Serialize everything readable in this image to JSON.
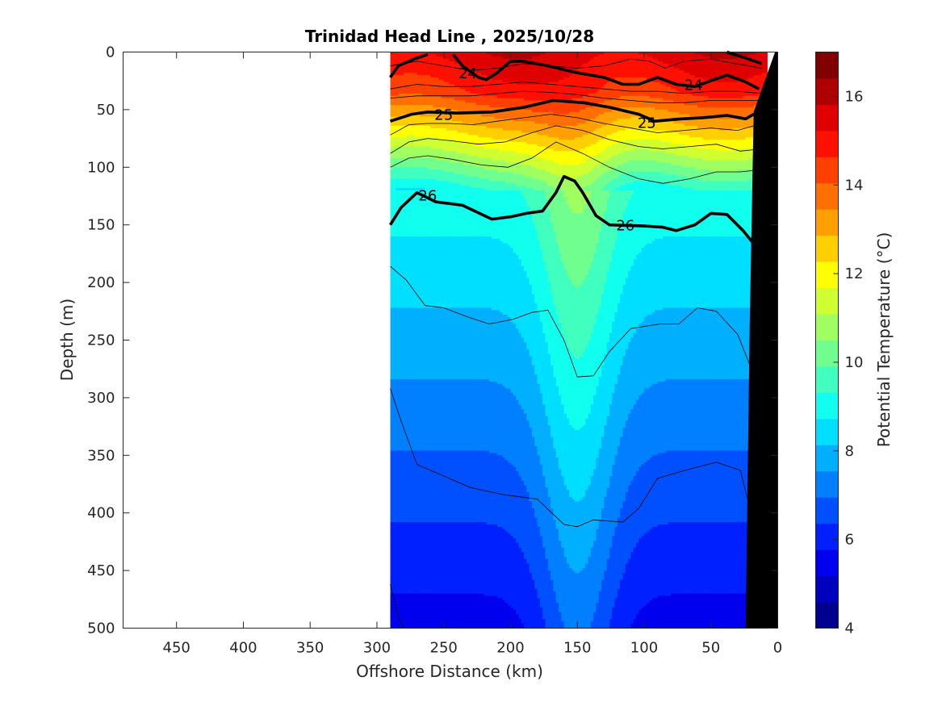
{
  "chart_data": {
    "type": "contour",
    "title": "Trinidad Head Line , 2025/10/28",
    "xlabel": "Offshore Distance (km)",
    "ylabel": "Depth (m)",
    "colorbar_label": "Potential Temperature (°C)",
    "x_direction": "reversed",
    "xlim": [
      490,
      0
    ],
    "ylim": [
      500,
      0
    ],
    "x_ticks": [
      "450",
      "400",
      "350",
      "300",
      "250",
      "200",
      "150",
      "100",
      "50",
      "0"
    ],
    "y_ticks": [
      "0",
      "50",
      "100",
      "150",
      "200",
      "250",
      "300",
      "350",
      "400",
      "450",
      "500"
    ],
    "colorbar_range": [
      4,
      17
    ],
    "colorbar_ticks": [
      "4",
      "6",
      "8",
      "10",
      "12",
      "14",
      "16"
    ],
    "colormap": [
      "#00008f",
      "#0000bf",
      "#0000ef",
      "#0020ff",
      "#0050ff",
      "#0080ff",
      "#00b0ff",
      "#00dfff",
      "#10ffef",
      "#40ffbf",
      "#70ff8f",
      "#a0ff60",
      "#cfff30",
      "#ffff00",
      "#ffcf00",
      "#ff9f00",
      "#ff7000",
      "#ff4000",
      "#ff1000",
      "#df0000",
      "#af0000",
      "#800000"
    ],
    "data_extent_km": [
      290,
      8
    ],
    "sigma_labels": [
      {
        "text": "24",
        "x": 232,
        "y": 18
      },
      {
        "text": "24",
        "x": 63,
        "y": 28
      },
      {
        "text": "25",
        "x": 250,
        "y": 54
      },
      {
        "text": "25",
        "x": 98,
        "y": 61
      },
      {
        "text": "26",
        "x": 262,
        "y": 124
      },
      {
        "text": "26",
        "x": 114,
        "y": 150
      }
    ],
    "sigma_contours": [
      {
        "label": "24",
        "points": [
          [
            290,
            22
          ],
          [
            284,
            12
          ],
          [
            272,
            6
          ],
          [
            262,
            2
          ]
        ]
      },
      {
        "label": "24",
        "points": [
          [
            243,
            2
          ],
          [
            236,
            12
          ],
          [
            224,
            22
          ],
          [
            218,
            24
          ],
          [
            210,
            18
          ],
          [
            200,
            8
          ],
          [
            190,
            8
          ],
          [
            172,
            12
          ],
          [
            150,
            18
          ],
          [
            130,
            22
          ],
          [
            116,
            28
          ],
          [
            104,
            28
          ],
          [
            90,
            22
          ],
          [
            76,
            28
          ],
          [
            62,
            30
          ],
          [
            48,
            24
          ],
          [
            38,
            20
          ],
          [
            24,
            26
          ],
          [
            14,
            32
          ]
        ]
      },
      {
        "label": "24",
        "points": [
          [
            38,
            0
          ],
          [
            22,
            6
          ],
          [
            12,
            10
          ]
        ]
      },
      {
        "label": "25",
        "points": [
          [
            290,
            60
          ],
          [
            274,
            54
          ],
          [
            262,
            52
          ],
          [
            240,
            53
          ],
          [
            214,
            52
          ],
          [
            190,
            48
          ],
          [
            168,
            42
          ],
          [
            145,
            44
          ],
          [
            126,
            48
          ],
          [
            104,
            54
          ],
          [
            92,
            60
          ],
          [
            72,
            58
          ],
          [
            56,
            57
          ],
          [
            38,
            55
          ],
          [
            24,
            58
          ],
          [
            12,
            50
          ]
        ]
      },
      {
        "label": "26",
        "points": [
          [
            290,
            150
          ],
          [
            282,
            135
          ],
          [
            270,
            122
          ],
          [
            256,
            130
          ],
          [
            236,
            133
          ],
          [
            214,
            145
          ],
          [
            200,
            143
          ],
          [
            188,
            140
          ],
          [
            176,
            138
          ],
          [
            166,
            122
          ],
          [
            160,
            108
          ],
          [
            152,
            112
          ],
          [
            146,
            122
          ],
          [
            136,
            142
          ],
          [
            126,
            150
          ],
          [
            100,
            151
          ],
          [
            86,
            152
          ],
          [
            76,
            155
          ],
          [
            62,
            150
          ],
          [
            50,
            140
          ],
          [
            38,
            141
          ],
          [
            26,
            155
          ],
          [
            14,
            172
          ],
          [
            8,
            183
          ]
        ]
      }
    ],
    "thin_contours": [
      {
        "points": [
          [
            290,
            12
          ],
          [
            270,
            8
          ],
          [
            250,
            12
          ],
          [
            230,
            16
          ],
          [
            210,
            14
          ],
          [
            190,
            10
          ],
          [
            170,
            12
          ],
          [
            150,
            14
          ],
          [
            130,
            12
          ],
          [
            110,
            6
          ],
          [
            96,
            8
          ],
          [
            84,
            14
          ],
          [
            70,
            8
          ],
          [
            50,
            6
          ],
          [
            32,
            10
          ],
          [
            12,
            14
          ]
        ]
      },
      {
        "points": [
          [
            290,
            32
          ],
          [
            270,
            28
          ],
          [
            250,
            30
          ],
          [
            230,
            30
          ],
          [
            210,
            28
          ],
          [
            190,
            26
          ],
          [
            170,
            28
          ],
          [
            150,
            30
          ],
          [
            130,
            32
          ],
          [
            110,
            34
          ],
          [
            90,
            34
          ],
          [
            70,
            36
          ],
          [
            50,
            34
          ],
          [
            30,
            34
          ],
          [
            12,
            36
          ]
        ]
      },
      {
        "points": [
          [
            290,
            40
          ],
          [
            270,
            38
          ],
          [
            250,
            38
          ],
          [
            230,
            38
          ],
          [
            210,
            36
          ],
          [
            190,
            34
          ],
          [
            170,
            35
          ],
          [
            150,
            37
          ],
          [
            130,
            40
          ],
          [
            110,
            42
          ],
          [
            90,
            44
          ],
          [
            70,
            44
          ],
          [
            50,
            42
          ],
          [
            30,
            42
          ],
          [
            12,
            42
          ]
        ]
      },
      {
        "points": [
          [
            290,
            72
          ],
          [
            276,
            63
          ],
          [
            262,
            62
          ],
          [
            246,
            62
          ],
          [
            228,
            63
          ],
          [
            210,
            60
          ],
          [
            190,
            57
          ],
          [
            170,
            54
          ],
          [
            150,
            57
          ],
          [
            130,
            62
          ],
          [
            110,
            66
          ],
          [
            90,
            70
          ],
          [
            70,
            68
          ],
          [
            50,
            66
          ],
          [
            30,
            68
          ],
          [
            12,
            62
          ]
        ]
      },
      {
        "points": [
          [
            290,
            88
          ],
          [
            276,
            78
          ],
          [
            262,
            75
          ],
          [
            244,
            77
          ],
          [
            224,
            80
          ],
          [
            204,
            78
          ],
          [
            184,
            70
          ],
          [
            166,
            64
          ],
          [
            146,
            68
          ],
          [
            126,
            76
          ],
          [
            104,
            82
          ],
          [
            86,
            84
          ],
          [
            66,
            82
          ],
          [
            46,
            80
          ],
          [
            28,
            86
          ],
          [
            12,
            84
          ]
        ]
      },
      {
        "points": [
          [
            290,
            100
          ],
          [
            276,
            92
          ],
          [
            262,
            90
          ],
          [
            244,
            93
          ],
          [
            222,
            98
          ],
          [
            202,
            100
          ],
          [
            184,
            92
          ],
          [
            166,
            78
          ],
          [
            146,
            88
          ],
          [
            126,
            100
          ],
          [
            104,
            110
          ],
          [
            86,
            114
          ],
          [
            66,
            110
          ],
          [
            46,
            104
          ],
          [
            28,
            104
          ],
          [
            12,
            102
          ]
        ]
      },
      {
        "points": [
          [
            290,
            186
          ],
          [
            278,
            198
          ],
          [
            264,
            220
          ],
          [
            250,
            222
          ],
          [
            232,
            230
          ],
          [
            216,
            236
          ],
          [
            198,
            232
          ],
          [
            184,
            226
          ],
          [
            172,
            224
          ],
          [
            160,
            250
          ],
          [
            150,
            282
          ],
          [
            138,
            281
          ],
          [
            126,
            260
          ],
          [
            110,
            240
          ],
          [
            88,
            236
          ],
          [
            74,
            236
          ],
          [
            60,
            222
          ],
          [
            46,
            225
          ],
          [
            30,
            245
          ],
          [
            18,
            280
          ]
        ]
      },
      {
        "points": [
          [
            290,
            292
          ],
          [
            282,
            320
          ],
          [
            270,
            358
          ],
          [
            254,
            366
          ],
          [
            230,
            378
          ],
          [
            206,
            384
          ],
          [
            180,
            388
          ],
          [
            160,
            410
          ],
          [
            150,
            412
          ],
          [
            138,
            406
          ],
          [
            116,
            408
          ],
          [
            104,
            396
          ],
          [
            90,
            370
          ],
          [
            66,
            362
          ],
          [
            46,
            356
          ],
          [
            28,
            363
          ],
          [
            20,
            400
          ]
        ]
      },
      {
        "points": [
          [
            290,
            462
          ],
          [
            284,
            490
          ],
          [
            280,
            500
          ]
        ]
      }
    ]
  }
}
